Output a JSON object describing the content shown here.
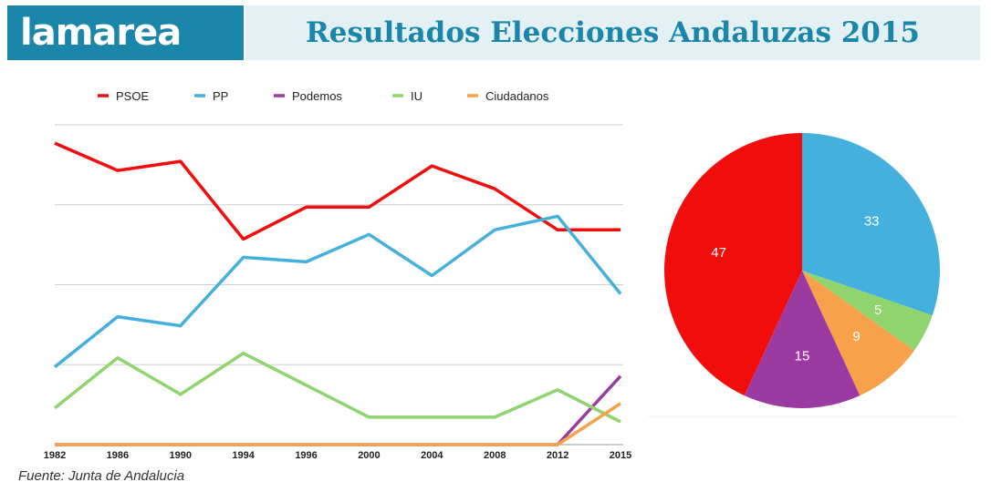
{
  "header": {
    "logo": "lamarea",
    "title": "Resultados Elecciones Andaluzas 2015"
  },
  "footer": {
    "source": "Fuente: Junta de Andalucia"
  },
  "colors": {
    "PSOE": "#f20d0d",
    "PP": "#44b0dd",
    "Podemos": "#9b3aa0",
    "IU": "#8fd46c",
    "Ciudadanos": "#f7a24a"
  },
  "chart_data": [
    {
      "type": "line",
      "title": "",
      "xlabel": "",
      "ylabel": "",
      "categories": [
        "1982",
        "1986",
        "1990",
        "1994",
        "1996",
        "2000",
        "2004",
        "2008",
        "2012",
        "2015"
      ],
      "ylim": [
        0,
        70
      ],
      "grid": true,
      "legend": "top",
      "series": [
        {
          "name": "PSOE",
          "values": [
            66,
            60,
            62,
            45,
            52,
            52,
            61,
            56,
            47,
            47
          ]
        },
        {
          "name": "PP",
          "values": [
            17,
            28,
            26,
            41,
            40,
            46,
            37,
            47,
            50,
            33
          ]
        },
        {
          "name": "Podemos",
          "values": [
            0,
            0,
            0,
            0,
            0,
            0,
            0,
            0,
            0,
            15
          ]
        },
        {
          "name": "IU",
          "values": [
            8,
            19,
            11,
            20,
            13,
            6,
            6,
            6,
            12,
            5
          ]
        },
        {
          "name": "Ciudadanos",
          "values": [
            0,
            0,
            0,
            0,
            0,
            0,
            0,
            0,
            0,
            9
          ]
        }
      ]
    },
    {
      "type": "pie",
      "title": "",
      "categories": [
        "PP",
        "IU",
        "Ciudadanos",
        "Podemos",
        "PSOE"
      ],
      "values": [
        33,
        5,
        9,
        15,
        47
      ],
      "labels": [
        "33",
        "5",
        "9",
        "15",
        "47"
      ]
    }
  ]
}
